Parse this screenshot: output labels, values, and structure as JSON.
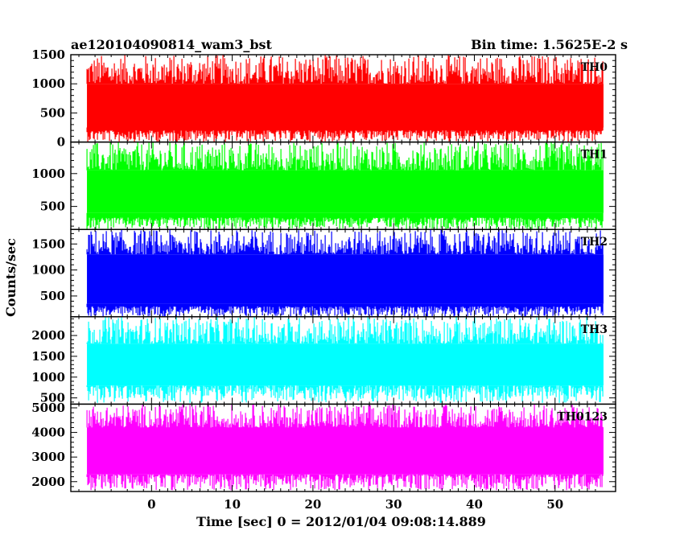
{
  "header": {
    "title": "ae120104090814_wam3_bst",
    "bin_time": "Bin time: 1.5625E-2 s"
  },
  "chart_data": {
    "type": "line",
    "title": "ae120104090814_wam3_bst",
    "subtitle": "Bin time: 1.5625E-2 s",
    "xlabel": "Time [sec] 0 = 2012/01/04 09:08:14.889",
    "ylabel": "Counts/sec",
    "xlim": [
      -10,
      57.5
    ],
    "x_range_data": [
      -8,
      56
    ],
    "x_ticks": [
      0,
      10,
      20,
      30,
      40,
      50
    ],
    "x_tick_labels": [
      "0",
      "10",
      "20",
      "30",
      "40",
      "50"
    ],
    "grid": false,
    "panels": [
      {
        "name": "TH0",
        "color": "#ff0000",
        "ylim": [
          0,
          1500
        ],
        "y_ticks": [
          0,
          500,
          1000,
          1500
        ],
        "y_tick_labels": [
          "0",
          "500",
          "1000",
          "1500"
        ],
        "low_envelope": [
          0,
          200
        ],
        "core": [
          250,
          1000
        ],
        "high_envelope": [
          1000,
          1500
        ]
      },
      {
        "name": "TH1",
        "color": "#00ff00",
        "ylim": [
          150,
          1480
        ],
        "y_ticks": [
          500,
          1000
        ],
        "y_tick_labels": [
          "500",
          "1000"
        ],
        "low_envelope": [
          150,
          330
        ],
        "core": [
          400,
          1050
        ],
        "high_envelope": [
          1050,
          1480
        ]
      },
      {
        "name": "TH2",
        "color": "#0000ff",
        "ylim": [
          100,
          1780
        ],
        "y_ticks": [
          500,
          1000,
          1500
        ],
        "y_tick_labels": [
          "500",
          "1000",
          "1500"
        ],
        "low_envelope": [
          100,
          300
        ],
        "core": [
          350,
          1300
        ],
        "high_envelope": [
          1300,
          1780
        ]
      },
      {
        "name": "TH3",
        "color": "#00ffff",
        "ylim": [
          350,
          2450
        ],
        "y_ticks": [
          500,
          1000,
          1500,
          2000
        ],
        "y_tick_labels": [
          "500",
          "1000",
          "1500",
          "2000"
        ],
        "low_envelope": [
          380,
          800
        ],
        "core": [
          800,
          1800
        ],
        "high_envelope": [
          1800,
          2450
        ]
      },
      {
        "name": "TH0123",
        "color": "#ff00ff",
        "ylim": [
          1600,
          5150
        ],
        "y_ticks": [
          2000,
          3000,
          4000,
          5000
        ],
        "y_tick_labels": [
          "2000",
          "3000",
          "4000",
          "5000"
        ],
        "low_envelope": [
          1650,
          2300
        ],
        "core": [
          2300,
          4200
        ],
        "high_envelope": [
          4200,
          5150
        ]
      }
    ]
  }
}
